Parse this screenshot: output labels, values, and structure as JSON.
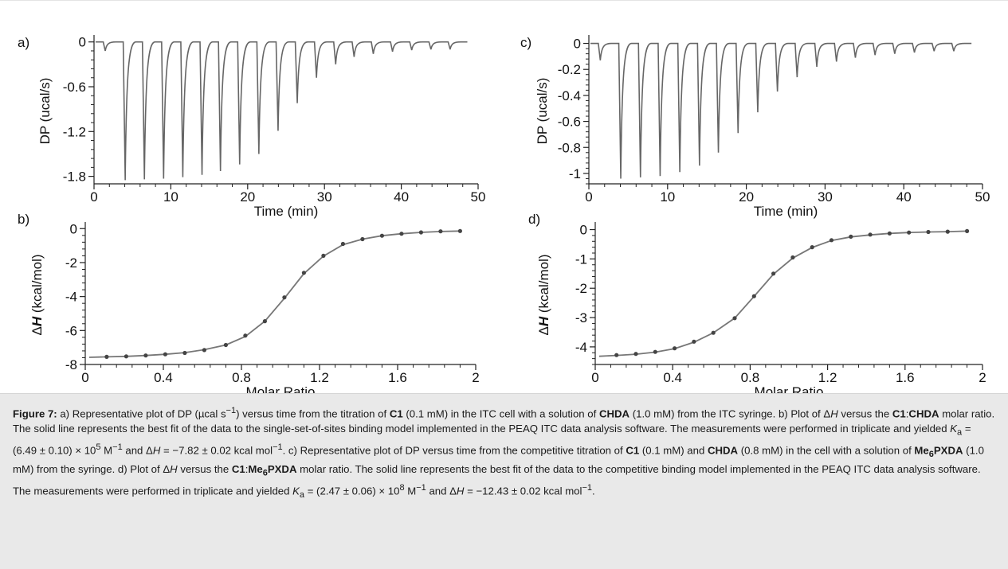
{
  "chart_data": [
    {
      "panel": "a)",
      "type": "line",
      "xlabel": "Time (min)",
      "ylabel": "DP (ucal/s)",
      "xlim": [
        0,
        50
      ],
      "ylim": [
        -1.9,
        0.05
      ],
      "xticks": [
        0,
        10,
        20,
        30,
        40,
        50
      ],
      "yticks": [
        0,
        -0.6,
        -1.2,
        -1.8
      ],
      "ytick_labels": [
        "0",
        "-0.6",
        "-1.2",
        "-1.8"
      ],
      "baseline": 0,
      "injection_times": [
        1.2,
        3.8,
        6.3,
        8.8,
        11.3,
        13.8,
        16.2,
        18.7,
        21.2,
        23.7,
        26.2,
        28.7,
        31.2,
        33.6,
        36.1,
        38.6,
        41.1,
        43.6,
        46.1
      ],
      "peak_minima": [
        -0.12,
        -1.85,
        -1.84,
        -1.83,
        -1.81,
        -1.78,
        -1.73,
        -1.64,
        -1.5,
        -1.19,
        -0.82,
        -0.48,
        -0.3,
        -0.2,
        -0.16,
        -0.13,
        -0.11,
        -0.1,
        -0.1
      ]
    },
    {
      "panel": "b)",
      "type": "scatter",
      "xlabel": "Molar Ratio",
      "ylabel": "ΔH (kcal/mol)",
      "xlim": [
        0,
        2
      ],
      "ylim": [
        -8,
        0.2
      ],
      "xticks": [
        0,
        0.4,
        0.8,
        1.2,
        1.6,
        2
      ],
      "xtick_labels": [
        "0",
        "0.4",
        "0.8",
        "1.2",
        "1.6",
        "2"
      ],
      "yticks": [
        0,
        -2,
        -4,
        -6,
        -8
      ],
      "ytick_labels": [
        "0",
        "-2",
        "-4",
        "-6",
        "-8"
      ],
      "x": [
        0.11,
        0.21,
        0.31,
        0.41,
        0.51,
        0.61,
        0.72,
        0.82,
        0.92,
        1.02,
        1.12,
        1.22,
        1.32,
        1.42,
        1.52,
        1.62,
        1.72,
        1.82,
        1.92
      ],
      "y": [
        -7.55,
        -7.52,
        -7.47,
        -7.4,
        -7.32,
        -7.15,
        -6.85,
        -6.3,
        -5.45,
        -4.05,
        -2.6,
        -1.6,
        -0.9,
        -0.62,
        -0.42,
        -0.3,
        -0.22,
        -0.16,
        -0.14
      ],
      "fit_x": [
        0.02,
        0.11,
        0.21,
        0.31,
        0.41,
        0.51,
        0.61,
        0.72,
        0.82,
        0.92,
        1.02,
        1.12,
        1.22,
        1.32,
        1.42,
        1.52,
        1.62,
        1.72,
        1.82,
        1.92
      ],
      "fit_y": [
        -7.58,
        -7.55,
        -7.52,
        -7.47,
        -7.4,
        -7.3,
        -7.13,
        -6.85,
        -6.35,
        -5.45,
        -4.1,
        -2.65,
        -1.62,
        -0.95,
        -0.62,
        -0.42,
        -0.3,
        -0.22,
        -0.17,
        -0.14
      ]
    },
    {
      "panel": "c)",
      "type": "line",
      "xlabel": "Time (min)",
      "ylabel": "DP (ucal/s)",
      "xlim": [
        0,
        50
      ],
      "ylim": [
        -1.08,
        0.04
      ],
      "xticks": [
        0,
        10,
        20,
        30,
        40,
        50
      ],
      "yticks": [
        0,
        -0.2,
        -0.4,
        -0.6,
        -0.8,
        -1
      ],
      "ytick_labels": [
        "0",
        "-0.2",
        "-0.4",
        "-0.6",
        "-0.8",
        "-1"
      ],
      "baseline": 0,
      "injection_times": [
        1.2,
        3.8,
        6.3,
        8.8,
        11.3,
        13.8,
        16.2,
        18.7,
        21.2,
        23.7,
        26.2,
        28.7,
        31.2,
        33.6,
        36.1,
        38.6,
        41.1,
        43.6,
        46.1
      ],
      "peak_minima": [
        -0.13,
        -1.04,
        -1.03,
        -1.02,
        -0.99,
        -0.94,
        -0.84,
        -0.69,
        -0.53,
        -0.37,
        -0.26,
        -0.18,
        -0.14,
        -0.11,
        -0.09,
        -0.08,
        -0.07,
        -0.06,
        -0.06
      ]
    },
    {
      "panel": "d)",
      "type": "scatter",
      "xlabel": "Molar Ratio",
      "ylabel": "ΔH (kcal/mol)",
      "xlim": [
        0,
        2
      ],
      "ylim": [
        -4.6,
        0.15
      ],
      "xticks": [
        0,
        0.4,
        0.8,
        1.2,
        1.6,
        2
      ],
      "xtick_labels": [
        "0",
        "0.4",
        "0.8",
        "1.2",
        "1.6",
        "2"
      ],
      "yticks": [
        0,
        -1,
        -2,
        -3,
        -4
      ],
      "ytick_labels": [
        "0",
        "-1",
        "-2",
        "-3",
        "-4"
      ],
      "x": [
        0.11,
        0.21,
        0.31,
        0.41,
        0.51,
        0.61,
        0.72,
        0.82,
        0.92,
        1.02,
        1.12,
        1.22,
        1.32,
        1.42,
        1.52,
        1.62,
        1.72,
        1.82,
        1.92
      ],
      "y": [
        -4.28,
        -4.24,
        -4.17,
        -4.05,
        -3.82,
        -3.52,
        -3.02,
        -2.27,
        -1.5,
        -0.95,
        -0.6,
        -0.36,
        -0.24,
        -0.17,
        -0.13,
        -0.1,
        -0.08,
        -0.07,
        -0.05
      ],
      "fit_x": [
        0.02,
        0.11,
        0.21,
        0.31,
        0.41,
        0.51,
        0.61,
        0.72,
        0.82,
        0.92,
        1.02,
        1.12,
        1.22,
        1.32,
        1.42,
        1.52,
        1.62,
        1.72,
        1.82,
        1.92
      ],
      "fit_y": [
        -4.32,
        -4.29,
        -4.25,
        -4.18,
        -4.06,
        -3.84,
        -3.52,
        -3.02,
        -2.28,
        -1.52,
        -0.97,
        -0.61,
        -0.37,
        -0.25,
        -0.18,
        -0.13,
        -0.1,
        -0.08,
        -0.07,
        -0.05
      ]
    }
  ],
  "caption": {
    "label": "Figure 7:",
    "t01": " a) Representative plot of DP (µcal s",
    "t02": ") versus time from the titration of ",
    "c1a": "C1",
    "t03": " (0.1 mM) in the ITC cell with a solution of ",
    "chda_a": "CHDA",
    "t04": " (1.0 mM) from the ITC syringe. b) Plot of Δ",
    "h1": "H",
    "t05": " versus the ",
    "c1b": "C1",
    "t06": ":",
    "chda_b": "CHDA",
    "t07": " molar ratio. The solid line represents the best fit of the data to the single-set-of-sites binding model implemented in the PEAQ ITC data analysis software. The measurements were performed in triplicate and yielded ",
    "k1": "K",
    "t08": " = (6.49 ± 0.10) × 10",
    "t09": " M",
    "t10": " and Δ",
    "h2": "H",
    "t11": " = −7.82 ± 0.02 kcal mol",
    "t12": ". c) Representative plot of DP versus time from the competitive titration of ",
    "c1c": "C1",
    "t13": " (0.1 mM) and ",
    "chda_c": "CHDA",
    "t14": " (0.8 mM) in the cell with a solution of ",
    "me6_a": "Me",
    "me6_a2": "PXDA",
    "t15": " (1.0 mM) from the syringe. d) Plot of Δ",
    "h3": "H",
    "t16": " versus the ",
    "c1d": "C1",
    "t17": ":",
    "me6_b": "Me",
    "me6_b2": "PXDA",
    "t18": " molar ratio. The solid line represents the best fit of the data to the competitive binding model implemented in the PEAQ ITC data analysis software. The measurements were performed in triplicate and yielded ",
    "k2": "K",
    "t19": " = (2.47 ± 0.06) × 10",
    "t20": " M",
    "t21": " and Δ",
    "h4": "H",
    "t22": " = −12.43 ± 0.02 kcal mol",
    "t23": ".",
    "sup_m1": "−1",
    "sub_a": "a",
    "sub_6": "6",
    "exp5": "5",
    "exp8": "8"
  }
}
